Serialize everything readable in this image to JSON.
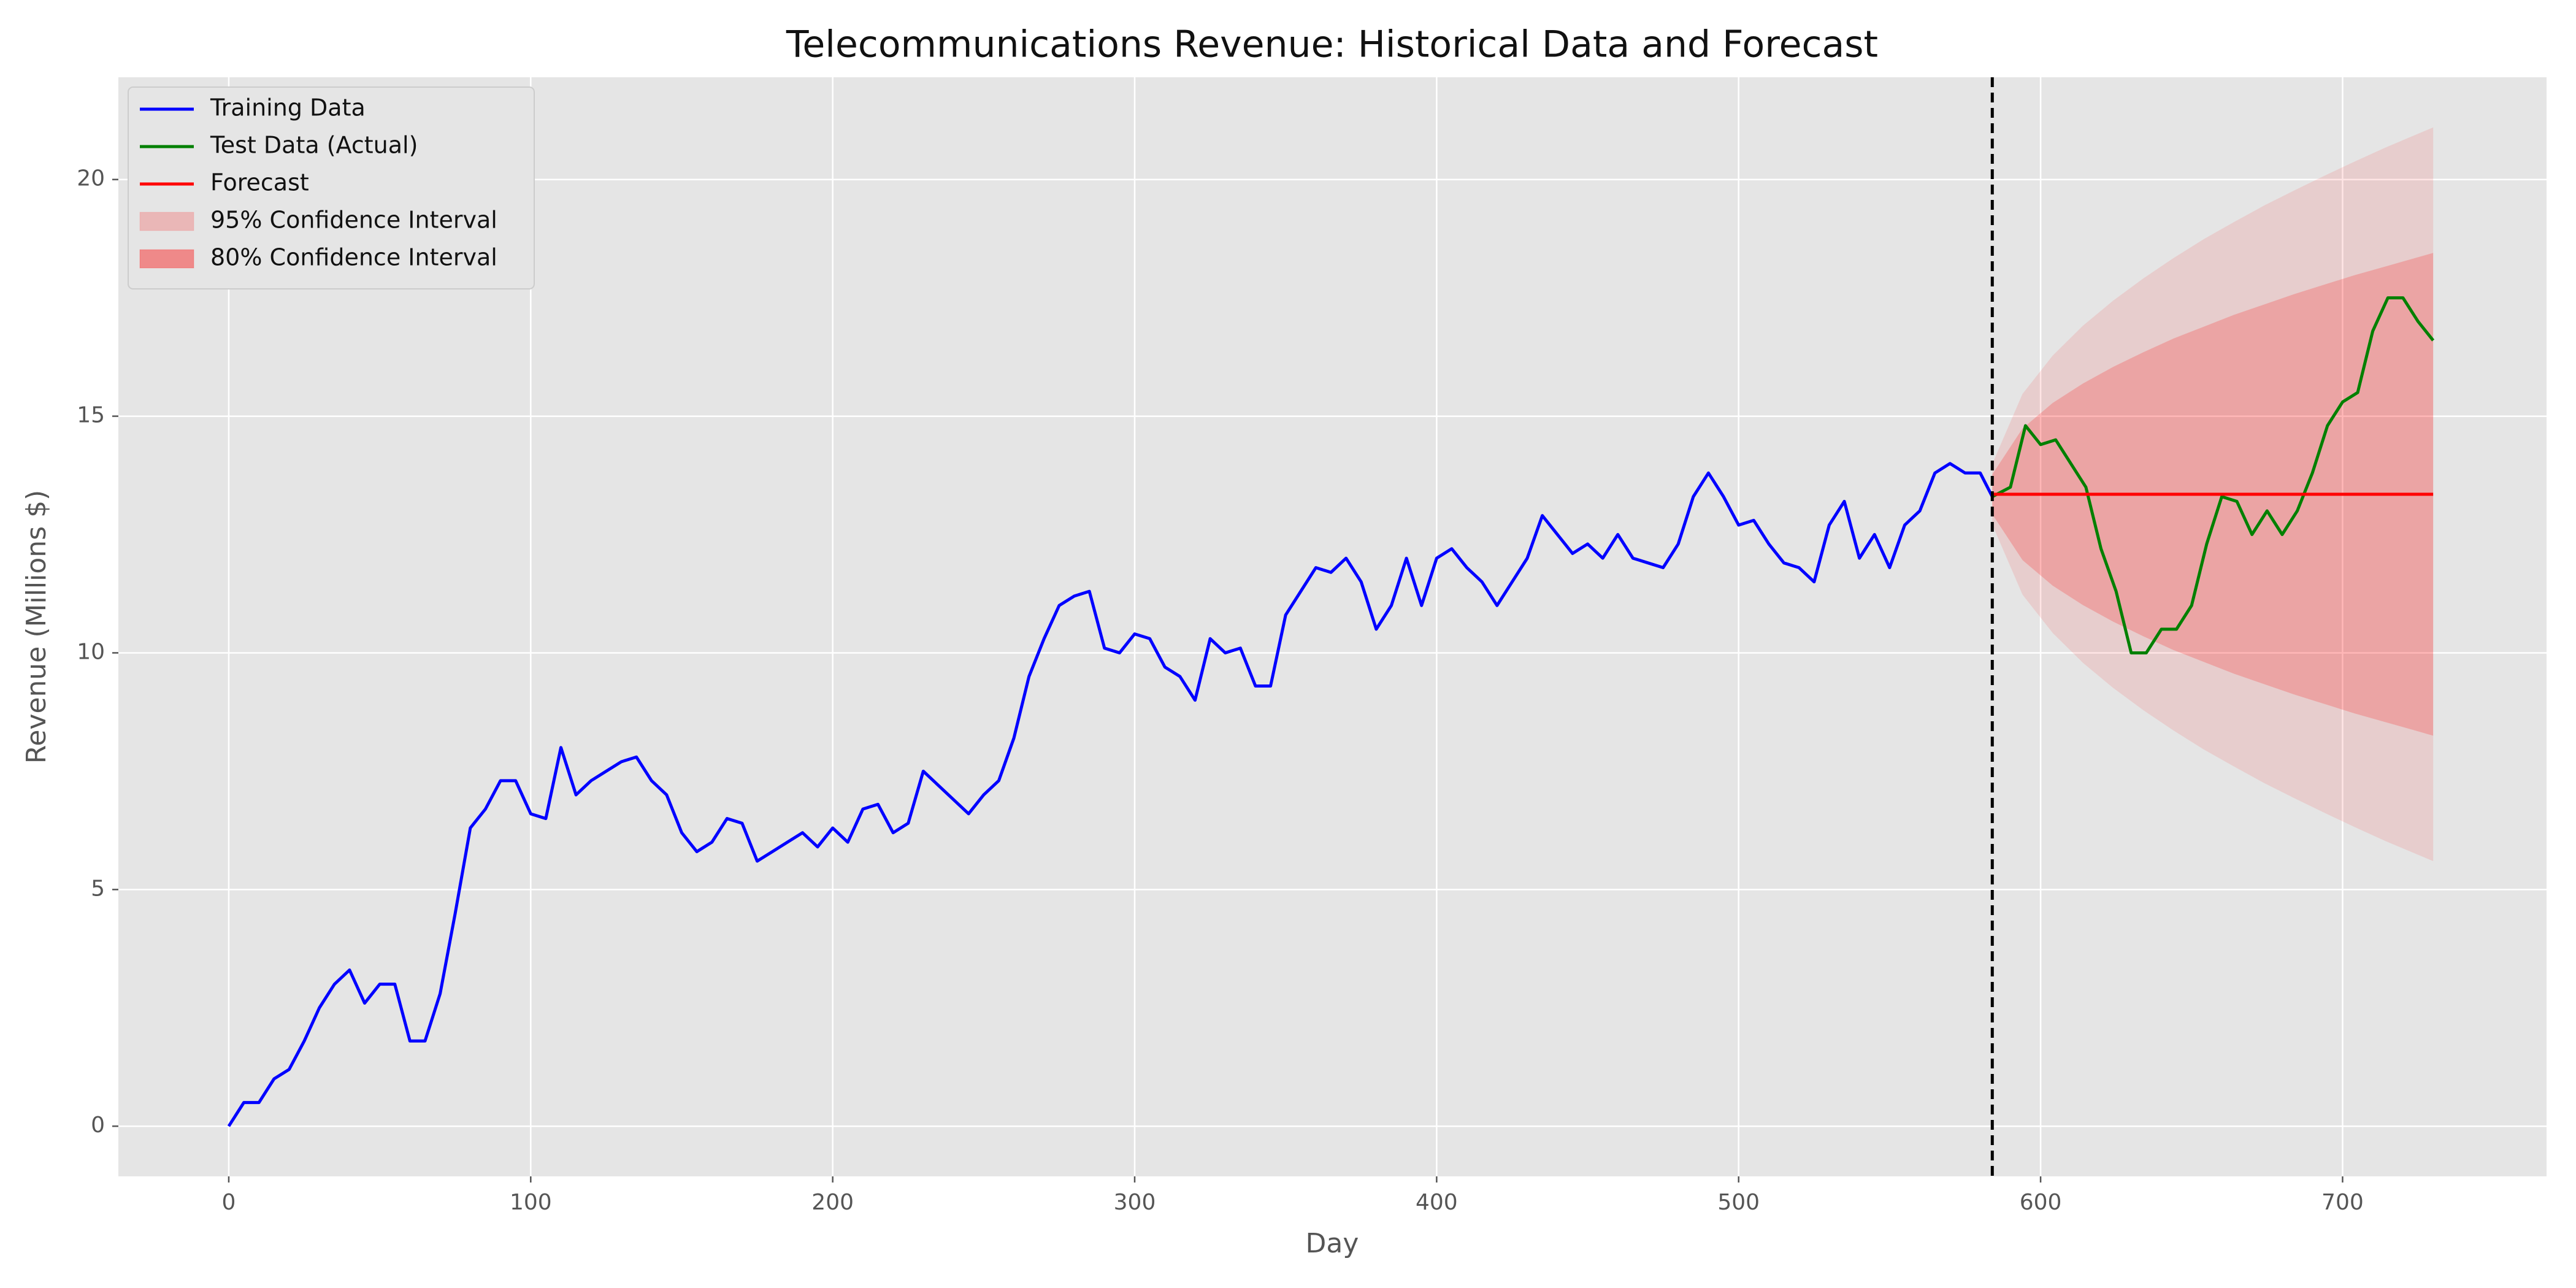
{
  "chart_data": {
    "type": "line",
    "title": "Telecommunications Revenue: Historical Data and Forecast",
    "xlabel": "Day",
    "ylabel": "Revenue (Millions $)",
    "xlim": [
      -36.55,
      767.55
    ],
    "xticks": [
      0,
      100,
      200,
      300,
      400,
      500,
      600,
      700
    ],
    "ylim": [
      -1.06,
      22.16
    ],
    "yticks": [
      0,
      5,
      10,
      15,
      20
    ],
    "grid": true,
    "legend": "upper left",
    "split_x": 584,
    "series": [
      {
        "name": "Training Data",
        "color": "#0000ff",
        "x": [
          0,
          5,
          10,
          15,
          20,
          25,
          30,
          35,
          40,
          45,
          50,
          55,
          60,
          65,
          70,
          75,
          80,
          85,
          90,
          95,
          100,
          105,
          110,
          115,
          120,
          125,
          130,
          135,
          140,
          145,
          150,
          155,
          160,
          165,
          170,
          175,
          180,
          185,
          190,
          195,
          200,
          205,
          210,
          215,
          220,
          225,
          230,
          235,
          240,
          245,
          250,
          255,
          260,
          265,
          270,
          275,
          280,
          285,
          290,
          295,
          300,
          305,
          310,
          315,
          320,
          325,
          330,
          335,
          340,
          345,
          350,
          355,
          360,
          365,
          370,
          375,
          380,
          385,
          390,
          395,
          400,
          405,
          410,
          415,
          420,
          425,
          430,
          435,
          440,
          445,
          450,
          455,
          460,
          465,
          470,
          475,
          480,
          485,
          490,
          495,
          500,
          505,
          510,
          515,
          520,
          525,
          530,
          535,
          540,
          545,
          550,
          555,
          560,
          565,
          570,
          575,
          580,
          584
        ],
        "values": [
          0,
          0.5,
          0.5,
          1.0,
          1.2,
          1.8,
          2.5,
          3.0,
          3.3,
          2.6,
          3.0,
          3.0,
          1.8,
          1.8,
          2.8,
          4.5,
          6.3,
          6.7,
          7.3,
          7.3,
          6.6,
          6.5,
          8.0,
          7.0,
          7.3,
          7.5,
          7.7,
          7.8,
          7.3,
          7.0,
          6.2,
          5.8,
          6.0,
          6.5,
          6.4,
          5.6,
          5.8,
          6.0,
          6.2,
          5.9,
          6.3,
          6.0,
          6.7,
          6.8,
          6.2,
          6.4,
          7.5,
          7.2,
          6.9,
          6.6,
          7.0,
          7.3,
          8.2,
          9.5,
          10.3,
          11.0,
          11.2,
          11.3,
          10.1,
          10.0,
          10.4,
          10.3,
          9.7,
          9.5,
          9.0,
          10.3,
          10.0,
          10.1,
          9.3,
          9.3,
          10.8,
          11.3,
          11.8,
          11.7,
          12.0,
          11.5,
          10.5,
          11.0,
          12.0,
          11.0,
          12.0,
          12.2,
          11.8,
          11.5,
          11.0,
          11.5,
          12.0,
          12.9,
          12.5,
          12.1,
          12.3,
          12.0,
          12.5,
          12.0,
          11.9,
          11.8,
          12.3,
          13.3,
          13.8,
          13.3,
          12.7,
          12.8,
          12.3,
          11.9,
          11.8,
          11.5,
          12.7,
          13.2,
          12.0,
          12.5,
          11.8,
          12.7,
          13.0,
          13.8,
          14.0,
          13.8,
          13.8,
          13.3
        ]
      },
      {
        "name": "Test Data (Actual)",
        "color": "#008000",
        "x": [
          584,
          590,
          595,
          600,
          605,
          610,
          615,
          620,
          625,
          630,
          635,
          640,
          645,
          650,
          655,
          660,
          665,
          670,
          675,
          680,
          685,
          690,
          695,
          700,
          705,
          710,
          715,
          720,
          725,
          730
        ],
        "values": [
          13.3,
          13.5,
          14.8,
          14.4,
          14.5,
          14.0,
          13.5,
          12.2,
          11.3,
          10.0,
          10.0,
          10.5,
          10.5,
          11.0,
          12.3,
          13.3,
          13.2,
          12.5,
          13.0,
          12.5,
          13.0,
          13.8,
          14.8,
          15.3,
          15.5,
          16.8,
          17.5,
          17.5,
          17.0,
          16.6
        ]
      },
      {
        "name": "Forecast",
        "color": "#ff0000",
        "x": [
          584,
          594,
          604,
          614,
          624,
          634,
          644,
          654,
          664,
          674,
          684,
          694,
          704,
          714,
          724,
          730
        ],
        "values": [
          13.35,
          13.35,
          13.35,
          13.35,
          13.35,
          13.35,
          13.35,
          13.35,
          13.35,
          13.35,
          13.35,
          13.35,
          13.35,
          13.35,
          13.35,
          13.35
        ]
      }
    ],
    "bands": [
      {
        "name": "95% Confidence Interval",
        "color": "#ff0000",
        "alpha": 0.1,
        "x": [
          584,
          594,
          604,
          614,
          624,
          634,
          644,
          654,
          664,
          674,
          684,
          694,
          704,
          714,
          724,
          730
        ],
        "upper": [
          13.99,
          15.47,
          16.28,
          16.91,
          17.44,
          17.91,
          18.34,
          18.74,
          19.1,
          19.45,
          19.77,
          20.08,
          20.38,
          20.67,
          20.94,
          21.1
        ],
        "lower": [
          12.71,
          11.23,
          10.42,
          9.79,
          9.26,
          8.79,
          8.36,
          7.96,
          7.6,
          7.25,
          6.93,
          6.62,
          6.32,
          6.03,
          5.76,
          5.6
        ]
      },
      {
        "name": "80% Confidence Interval",
        "color": "#ff0000",
        "alpha": 0.2,
        "x": [
          584,
          594,
          604,
          614,
          624,
          634,
          644,
          654,
          664,
          674,
          684,
          694,
          704,
          714,
          724,
          730
        ],
        "upper": [
          13.77,
          14.74,
          15.28,
          15.69,
          16.04,
          16.35,
          16.64,
          16.89,
          17.14,
          17.36,
          17.58,
          17.78,
          17.98,
          18.16,
          18.34,
          18.45
        ],
        "lower": [
          12.93,
          11.96,
          11.42,
          11.01,
          10.66,
          10.35,
          10.06,
          9.81,
          9.56,
          9.34,
          9.12,
          8.92,
          8.72,
          8.54,
          8.36,
          8.25
        ]
      }
    ]
  }
}
